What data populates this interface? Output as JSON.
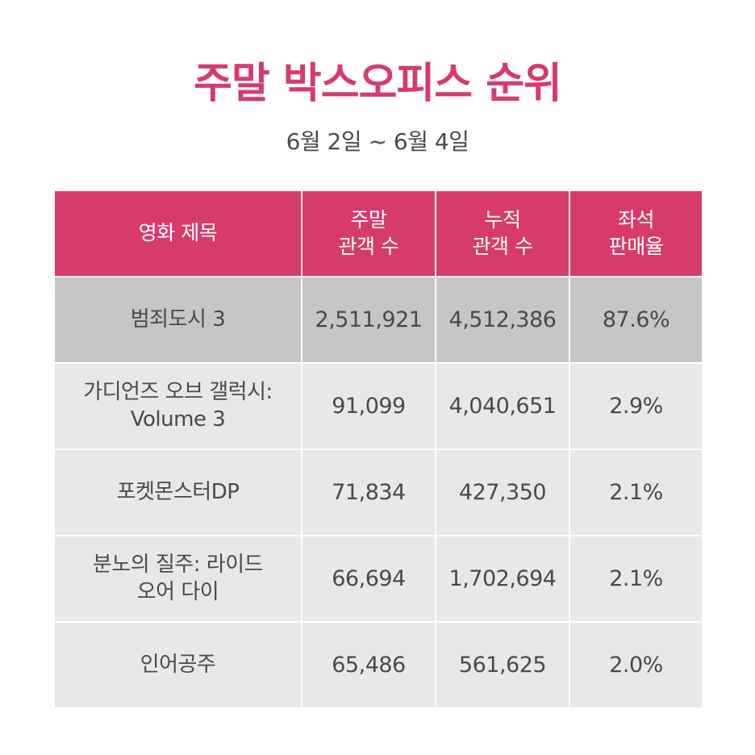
{
  "title": "주말 박스오피스 순위",
  "subtitle": "6월 2일 ~ 6월 4일",
  "colors": {
    "accent": "#d63b6c",
    "header_text": "#ffffff",
    "row_highlight": "#c6c6c6",
    "row_default": "#e8e8e8",
    "body_text": "#4a4a4a"
  },
  "table": {
    "headers": [
      "영화 제목",
      "주말\n관객 수",
      "누적\n관객 수",
      "좌석\n판매율"
    ],
    "rows": [
      {
        "title": "범죄도시 3",
        "weekend": "2,511,921",
        "total": "4,512,386",
        "rate": "87.6%"
      },
      {
        "title": "가디언즈 오브 갤럭시:\nVolume 3",
        "weekend": "91,099",
        "total": "4,040,651",
        "rate": "2.9%"
      },
      {
        "title": "포켓몬스터DP",
        "weekend": "71,834",
        "total": "427,350",
        "rate": "2.1%"
      },
      {
        "title": "분노의 질주: 라이드\n오어 다이",
        "weekend": "66,694",
        "total": "1,702,694",
        "rate": "2.1%"
      },
      {
        "title": "인어공주",
        "weekend": "65,486",
        "total": "561,625",
        "rate": "2.0%"
      }
    ]
  }
}
